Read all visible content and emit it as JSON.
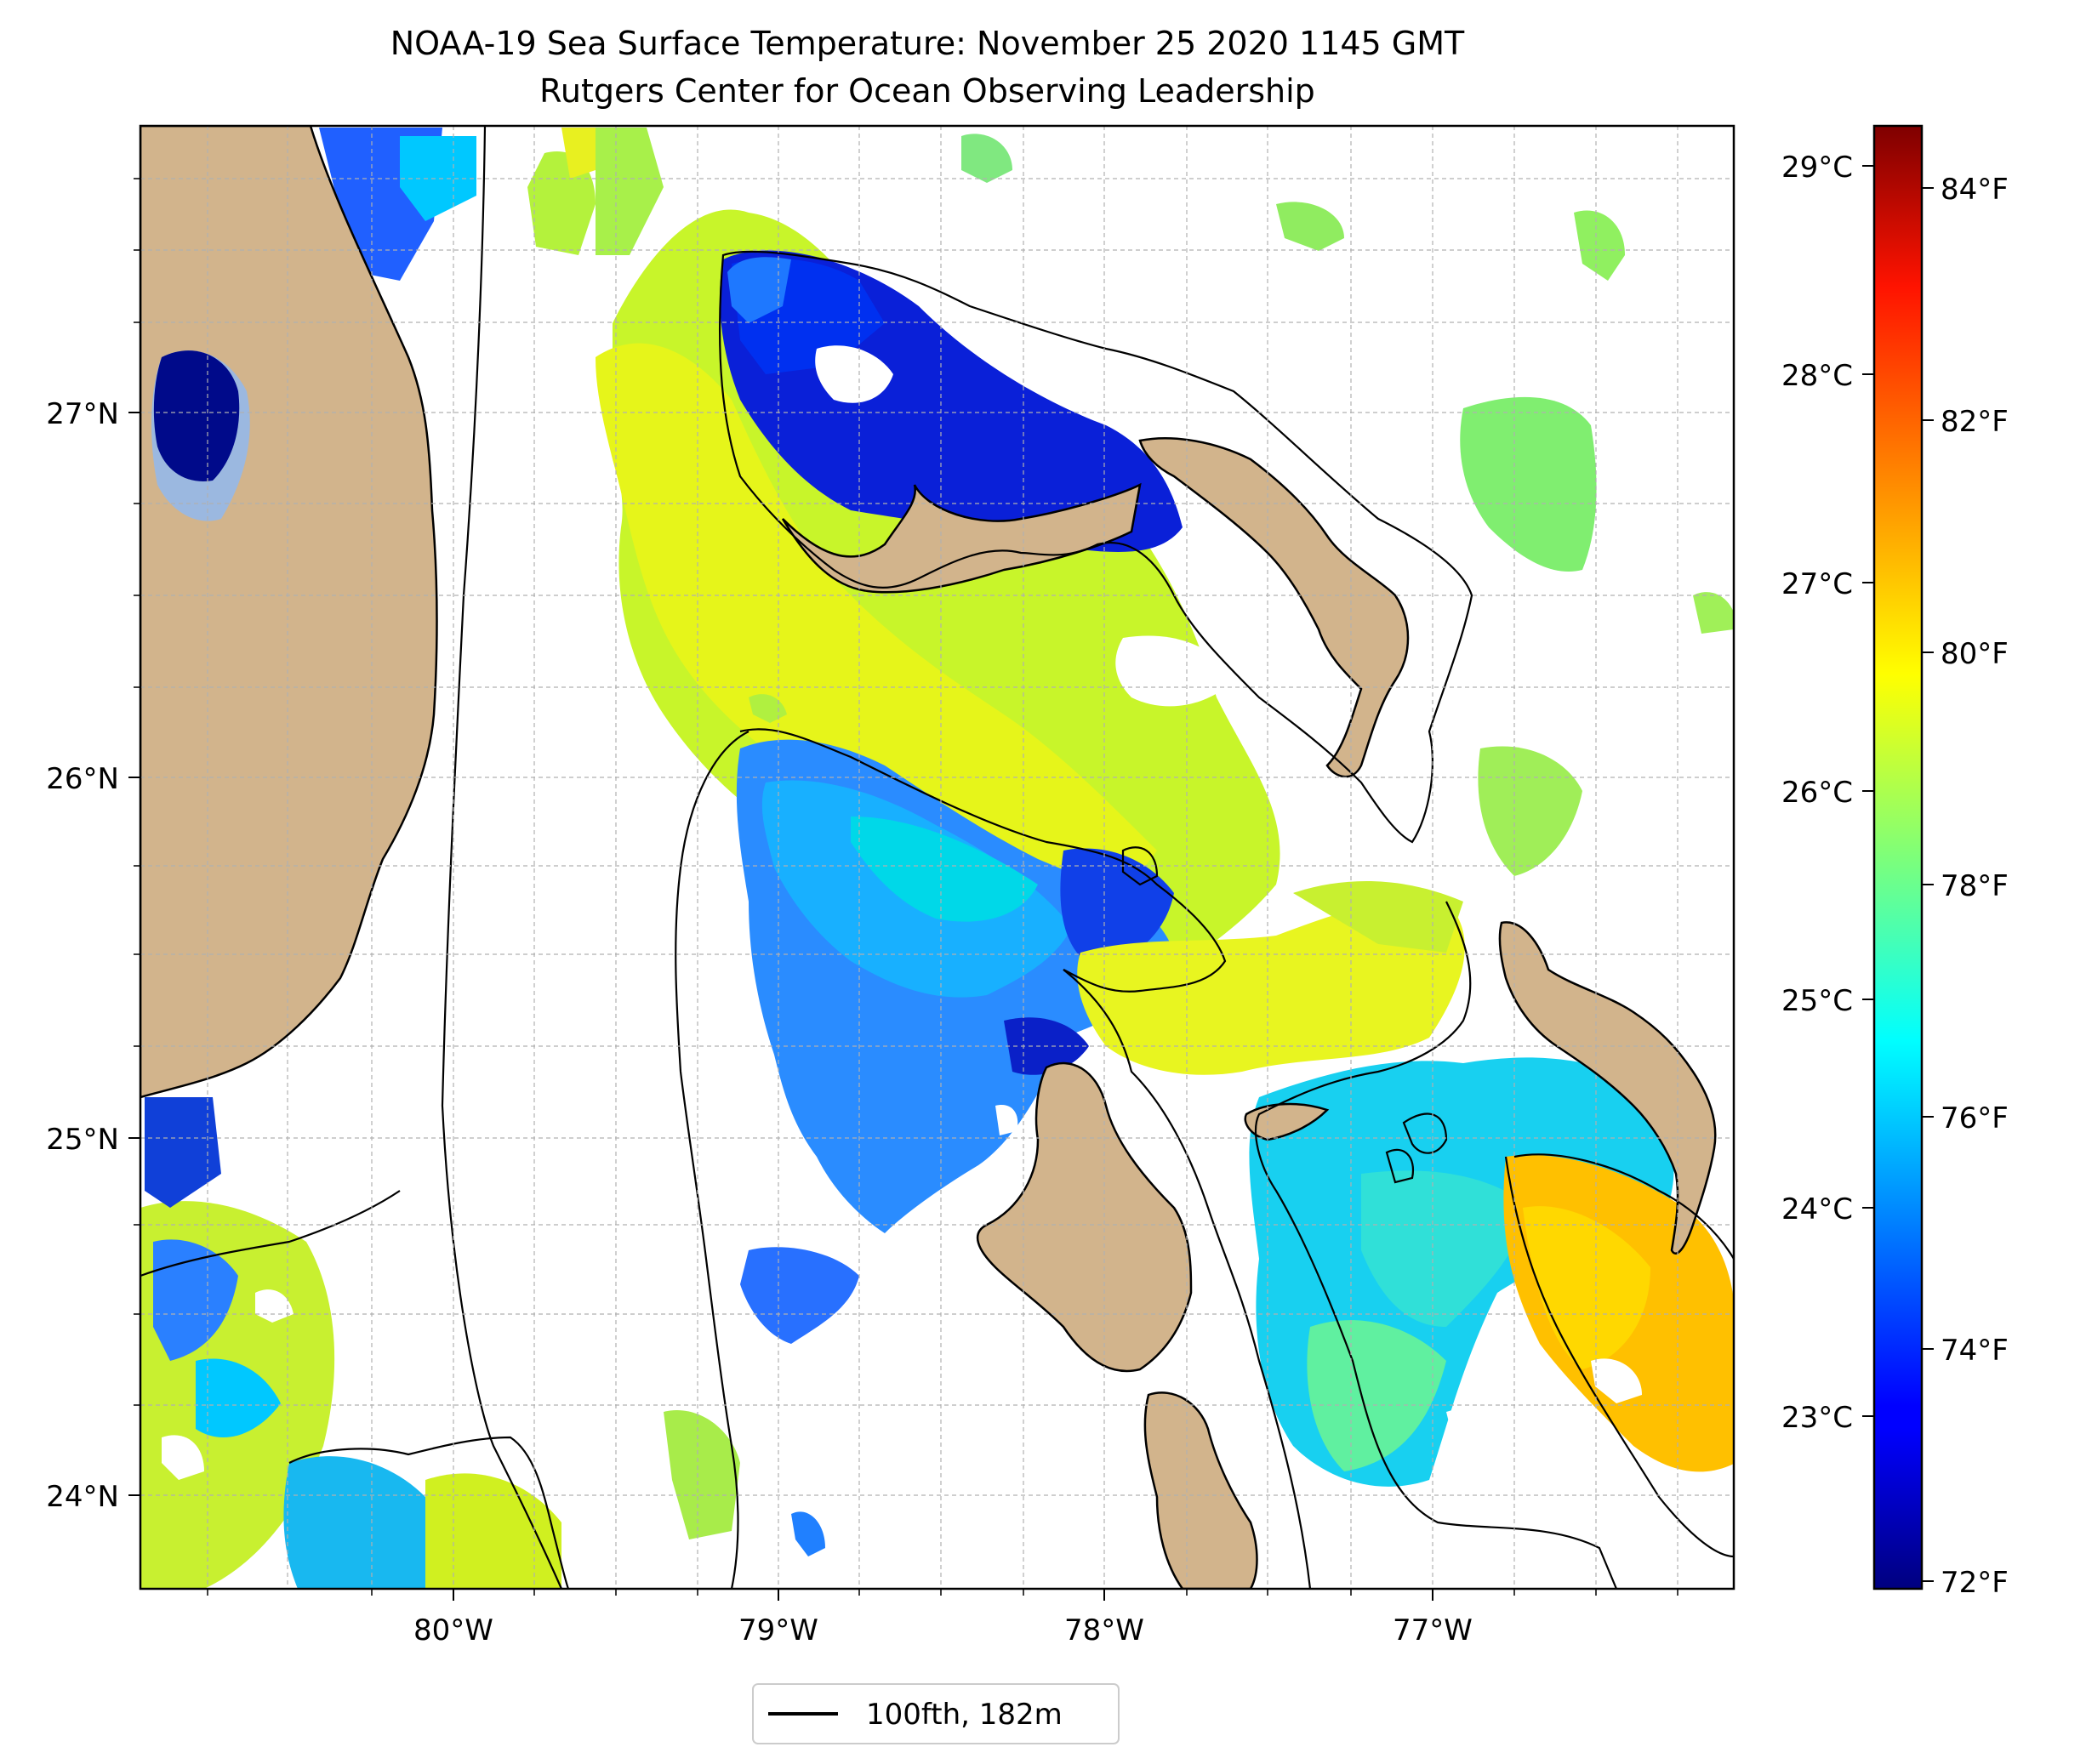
{
  "title": {
    "line1": "NOAA-19 Sea Surface Temperature: November 25 2020 1145 GMT",
    "line2": "Rutgers Center for Ocean Observing Leadership"
  },
  "map": {
    "lat_ticks": [
      "27°N",
      "26°N",
      "25°N",
      "24°N"
    ],
    "lon_ticks": [
      "80°W",
      "79°W",
      "78°W",
      "77°W"
    ],
    "gridlines": true,
    "land_color": "#d2b48c",
    "missing_data_color": "#ffffff"
  },
  "colorbar": {
    "colormap": "jet",
    "celsius_ticks": [
      "29°C",
      "28°C",
      "27°C",
      "26°C",
      "25°C",
      "24°C",
      "23°C"
    ],
    "fahrenheit_ticks": [
      "84°F",
      "82°F",
      "80°F",
      "78°F",
      "76°F",
      "74°F",
      "72°F"
    ],
    "range_f": [
      71.9,
      84.5
    ]
  },
  "legend": {
    "entries": [
      {
        "label": "100fth, 182m",
        "color": "#000000"
      }
    ],
    "placement": "bottom-center"
  }
}
